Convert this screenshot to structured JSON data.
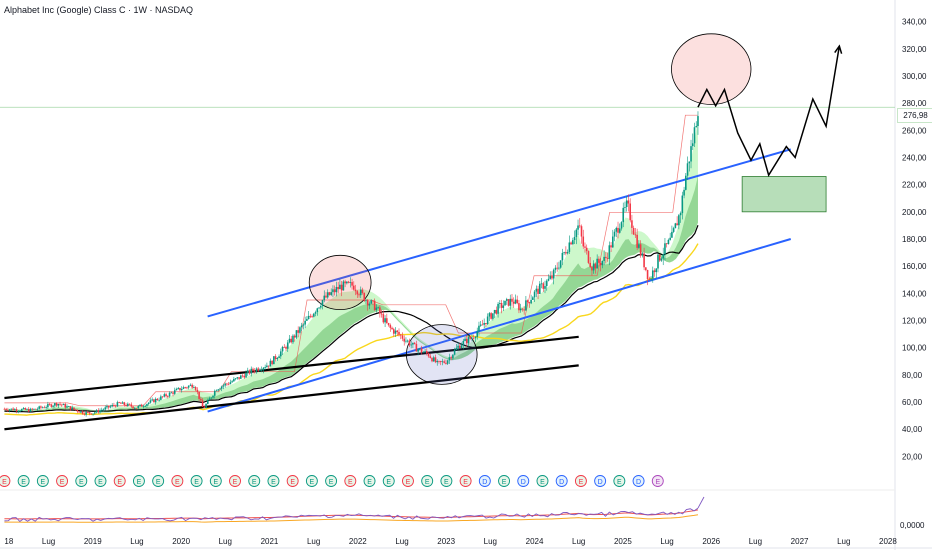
{
  "chart_data": {
    "type": "candlestick",
    "title": "Alphabet Inc (Google) Class C · 1W · NASDAQ",
    "last_price_label": "276,98",
    "last_price": 276.98,
    "y_ticks": [
      "340,00",
      "320,00",
      "300,00",
      "280,00",
      "260,00",
      "240,00",
      "220,00",
      "200,00",
      "180,00",
      "160,00",
      "140,00",
      "120,00",
      "100,00",
      "80,00",
      "60,00",
      "40,00",
      "20,00"
    ],
    "y_tick_values": [
      340,
      320,
      300,
      280,
      260,
      240,
      220,
      200,
      180,
      160,
      140,
      120,
      100,
      80,
      60,
      40,
      20
    ],
    "ylim": [
      10,
      350
    ],
    "oscillator_tick": "0,0000",
    "x_ticks": [
      "18",
      "Lug",
      "2019",
      "Lug",
      "2020",
      "Lug",
      "2021",
      "Lug",
      "2022",
      "Lug",
      "2023",
      "Lug",
      "2024",
      "Lug",
      "2025",
      "Lug",
      "2026",
      "Lug",
      "2027",
      "Lug",
      "2028"
    ],
    "x_tick_years": [
      2018.0,
      2018.5,
      2019.0,
      2019.5,
      2020.0,
      2020.5,
      2021.0,
      2021.5,
      2022.0,
      2022.5,
      2023.0,
      2023.5,
      2024.0,
      2024.5,
      2025.0,
      2025.5,
      2026.0,
      2026.5,
      2027.0,
      2027.5,
      2028.0
    ],
    "xlim": [
      2017.95,
      2028.08
    ],
    "earnings_markers": [
      "E",
      "E",
      "E",
      "E",
      "E",
      "E",
      "E",
      "E",
      "E",
      "E",
      "E",
      "E",
      "E",
      "E",
      "E",
      "E",
      "E",
      "E",
      "E",
      "E",
      "E",
      "E",
      "E",
      "E",
      "E",
      "D",
      "E",
      "D",
      "E",
      "D",
      "E",
      "D",
      "E",
      "D",
      "E"
    ],
    "price_path": [
      [
        2018.0,
        55
      ],
      [
        2018.3,
        54
      ],
      [
        2018.6,
        59
      ],
      [
        2018.9,
        52
      ],
      [
        2019.0,
        52
      ],
      [
        2019.3,
        59
      ],
      [
        2019.5,
        56
      ],
      [
        2019.8,
        64
      ],
      [
        2020.0,
        70
      ],
      [
        2020.15,
        73
      ],
      [
        2020.25,
        55
      ],
      [
        2020.4,
        70
      ],
      [
        2020.6,
        76
      ],
      [
        2020.8,
        83
      ],
      [
        2021.0,
        88
      ],
      [
        2021.2,
        102
      ],
      [
        2021.4,
        118
      ],
      [
        2021.6,
        135
      ],
      [
        2021.8,
        145
      ],
      [
        2021.95,
        146
      ],
      [
        2022.1,
        135
      ],
      [
        2022.2,
        130
      ],
      [
        2022.35,
        115
      ],
      [
        2022.5,
        108
      ],
      [
        2022.65,
        100
      ],
      [
        2022.8,
        95
      ],
      [
        2022.9,
        88
      ],
      [
        2023.0,
        90
      ],
      [
        2023.15,
        102
      ],
      [
        2023.3,
        108
      ],
      [
        2023.45,
        120
      ],
      [
        2023.6,
        130
      ],
      [
        2023.75,
        135
      ],
      [
        2023.85,
        128
      ],
      [
        2024.0,
        140
      ],
      [
        2024.2,
        152
      ],
      [
        2024.4,
        178
      ],
      [
        2024.5,
        190
      ],
      [
        2024.55,
        175
      ],
      [
        2024.65,
        160
      ],
      [
        2024.8,
        165
      ],
      [
        2024.95,
        190
      ],
      [
        2025.05,
        205
      ],
      [
        2025.15,
        180
      ],
      [
        2025.3,
        150
      ],
      [
        2025.4,
        165
      ],
      [
        2025.55,
        180
      ],
      [
        2025.65,
        200
      ],
      [
        2025.72,
        230
      ],
      [
        2025.8,
        255
      ],
      [
        2025.85,
        276.98
      ]
    ],
    "projection_path": [
      [
        2025.85,
        276.98
      ],
      [
        2025.95,
        290
      ],
      [
        2026.05,
        278
      ],
      [
        2026.15,
        290
      ],
      [
        2026.3,
        258
      ],
      [
        2026.45,
        238
      ],
      [
        2026.55,
        250
      ],
      [
        2026.65,
        227
      ],
      [
        2026.85,
        248
      ],
      [
        2026.95,
        240
      ],
      [
        2027.15,
        283
      ],
      [
        2027.3,
        263
      ],
      [
        2027.45,
        322
      ]
    ],
    "target_zone": {
      "x": [
        2026.35,
        2027.3
      ],
      "y": [
        200,
        226
      ]
    },
    "channel_upper": [
      [
        2020.3,
        123
      ],
      [
        2026.9,
        246
      ]
    ],
    "channel_lower": [
      [
        2020.3,
        53
      ],
      [
        2026.9,
        180
      ]
    ],
    "long_support_upper": [
      [
        2018.0,
        63
      ],
      [
        2024.5,
        108
      ]
    ],
    "long_support_lower": [
      [
        2018.0,
        40
      ],
      [
        2024.5,
        87
      ]
    ],
    "highlight_circles": [
      {
        "center": [
          2021.8,
          148
        ],
        "radius_x": 0.35,
        "radius_y": 20,
        "color": "#ef5350"
      },
      {
        "center": [
          2022.95,
          95
        ],
        "radius_x": 0.4,
        "radius_y": 22,
        "color": "#5c6bc0"
      },
      {
        "center": [
          2026.0,
          305
        ],
        "radius_x": 0.45,
        "radius_y": 26,
        "color": "#ef5350"
      }
    ],
    "colors": {
      "bull": "#089981",
      "bear": "#f23645",
      "ribbon": "#66bb6a",
      "ribbon_light": "#c8f7c5",
      "channel": "#2962ff",
      "support": "#000000",
      "projection": "#000000",
      "zone_fill": "#a5d6a7",
      "zone_border": "#2e7d32",
      "ma_black": "#000000",
      "ma_yellow": "#f9d71c",
      "resistance_red": "#ef5350",
      "oscillator": "#7e57c2"
    }
  }
}
